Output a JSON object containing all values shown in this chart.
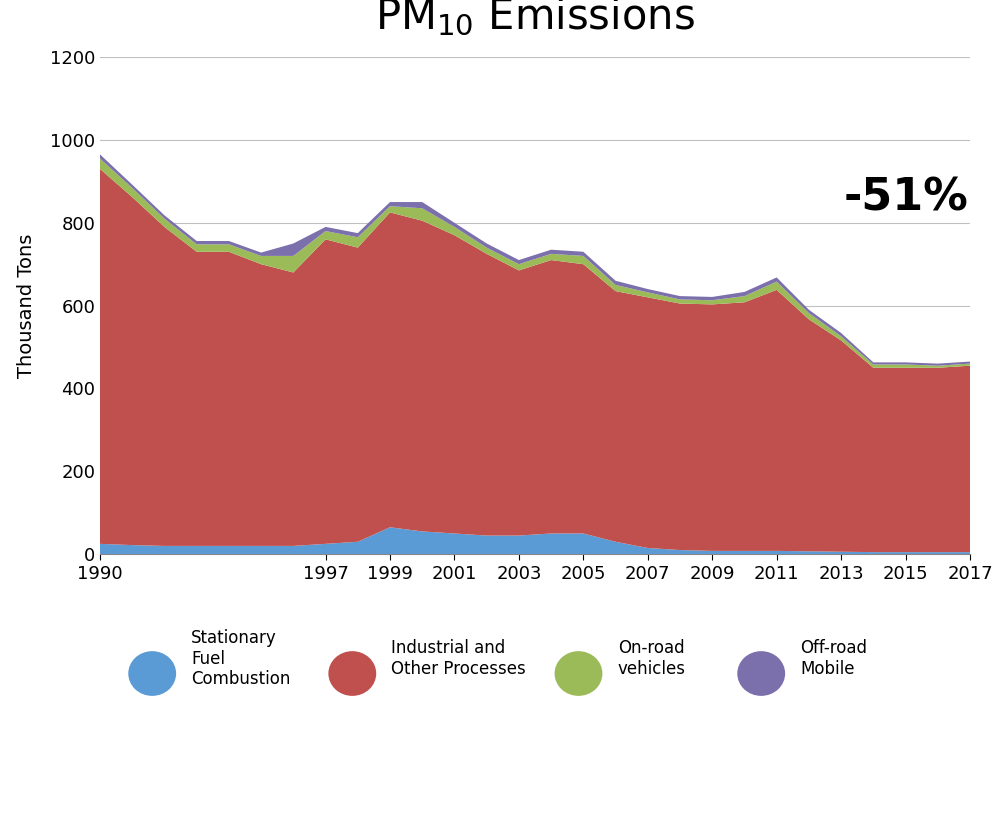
{
  "years": [
    1990,
    1991,
    1992,
    1993,
    1994,
    1995,
    1996,
    1997,
    1998,
    1999,
    2000,
    2001,
    2002,
    2003,
    2004,
    2005,
    2006,
    2007,
    2008,
    2009,
    2010,
    2011,
    2012,
    2013,
    2014,
    2015,
    2016,
    2017
  ],
  "stationary_fuel": [
    25,
    22,
    20,
    20,
    20,
    20,
    20,
    25,
    30,
    65,
    55,
    50,
    45,
    45,
    50,
    50,
    30,
    15,
    10,
    8,
    8,
    8,
    7,
    6,
    5,
    5,
    5,
    5
  ],
  "industrial_other": [
    905,
    840,
    770,
    710,
    710,
    680,
    660,
    735,
    710,
    760,
    750,
    720,
    680,
    640,
    660,
    650,
    605,
    605,
    595,
    595,
    600,
    630,
    560,
    510,
    445,
    445,
    445,
    450
  ],
  "onroad_vehicles": [
    25,
    22,
    20,
    18,
    18,
    20,
    40,
    20,
    25,
    15,
    30,
    20,
    15,
    15,
    15,
    20,
    15,
    12,
    10,
    10,
    15,
    20,
    15,
    10,
    8,
    8,
    5,
    5
  ],
  "offroad_mobile": [
    10,
    8,
    8,
    8,
    8,
    8,
    30,
    10,
    10,
    10,
    15,
    10,
    10,
    10,
    10,
    10,
    10,
    8,
    8,
    8,
    10,
    10,
    8,
    8,
    5,
    5,
    5,
    5
  ],
  "stationary_color": "#5b9bd5",
  "industrial_color": "#c0504d",
  "onroad_color": "#9bbb59",
  "offroad_color": "#7b6fac",
  "title_main": "PM",
  "title_sub": "10",
  "title_suffix": " Emissions",
  "ylabel": "Thousand Tons",
  "annotation": "-51%",
  "ylim": [
    0,
    1200
  ],
  "xtick_labels": [
    1990,
    1997,
    1999,
    2001,
    2003,
    2005,
    2007,
    2009,
    2011,
    2013,
    2015,
    2017
  ],
  "ytick_labels": [
    0,
    200,
    400,
    600,
    800,
    1000,
    1200
  ],
  "background_color": "#ffffff",
  "grid_color": "#c0c0c0",
  "legend_labels": [
    "Stationary\nFuel\nCombustion",
    "Industrial and\nOther Processes",
    "On-road\nvehicles",
    "Off-road\nMobile"
  ]
}
